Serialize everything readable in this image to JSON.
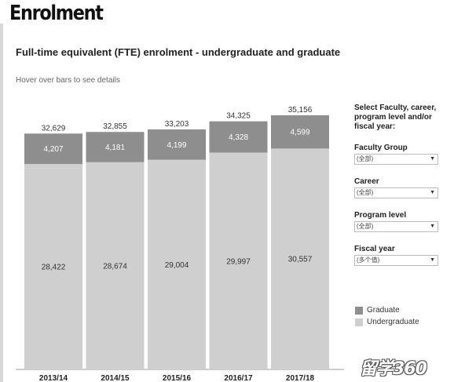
{
  "page": {
    "title": "Enrolment",
    "subtitle": "Full-time equivalent (FTE) enrolment  - undergraduate and graduate",
    "hint": "Hover over bars to see details"
  },
  "chart_data": {
    "type": "bar",
    "stacked": true,
    "title": "Full-time equivalent (FTE) enrolment  - undergraduate and graduate",
    "categories": [
      "2013/14",
      "2014/15",
      "2015/16",
      "2016/17",
      "2017/18"
    ],
    "series": [
      {
        "name": "Undergraduate",
        "color": "#cfcfcf",
        "values": [
          28422,
          28674,
          29004,
          29997,
          30557
        ]
      },
      {
        "name": "Graduate",
        "color": "#8e8e8e",
        "values": [
          4207,
          4181,
          4199,
          4328,
          4599
        ]
      }
    ],
    "totals": [
      32629,
      32855,
      33203,
      34325,
      35156
    ],
    "value_labels": {
      "undergraduate": [
        "28,422",
        "28,674",
        "29,004",
        "29,997",
        "30,557"
      ],
      "graduate": [
        "4,207",
        "4,181",
        "4,199",
        "4,328",
        "4,599"
      ],
      "totals": [
        "32,629",
        "32,855",
        "33,203",
        "34,325",
        "35,156"
      ]
    },
    "ylim": [
      0,
      35156
    ],
    "grid": false,
    "legend": "right"
  },
  "filters": {
    "heading": "Select Faculty, career, program level and/or fiscal year:",
    "items": [
      {
        "label": "Faculty Group",
        "value": "(全部)"
      },
      {
        "label": "Career",
        "value": "(全部)"
      },
      {
        "label": "Program level",
        "value": "(全部)"
      },
      {
        "label": "Fiscal year",
        "value": "(多个值)"
      }
    ]
  },
  "legend": {
    "items": [
      {
        "name": "Graduate",
        "color": "#8e8e8e"
      },
      {
        "name": "Undergraduate",
        "color": "#cfcfcf"
      }
    ]
  },
  "watermark": "留学360",
  "icons": {
    "dropdown": "caret-down-icon"
  }
}
